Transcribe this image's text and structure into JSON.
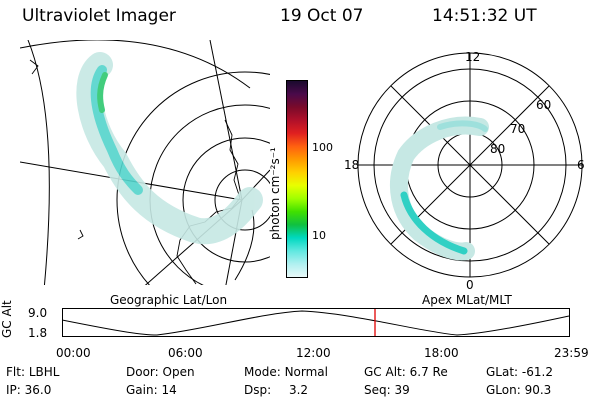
{
  "header": {
    "title": "Ultraviolet Imager",
    "date": "19 Oct 07",
    "time": "14:51:32 UT"
  },
  "colorbar": {
    "label": "photon cm⁻²s⁻¹",
    "ticks": [
      "100",
      "10"
    ],
    "colors": [
      "#1a0a2e",
      "#4a0a4a",
      "#7a0a2a",
      "#b0102a",
      "#e02020",
      "#ff6010",
      "#ff9a00",
      "#ffd000",
      "#e8ff00",
      "#a0ff00",
      "#40e000",
      "#10c040",
      "#00d8c0",
      "#60e8e0",
      "#b0f0f0",
      "#e8f8f8"
    ]
  },
  "polar": {
    "labels": [
      "12",
      "60",
      "70",
      "80",
      "18",
      "6",
      "0"
    ]
  },
  "panel_labels": {
    "left": "Geographic Lat/Lon",
    "right": "Apex MLat/MLT"
  },
  "timeline": {
    "y_label": "GC Alt",
    "y_ticks": [
      "9.0",
      "1.8"
    ],
    "x_ticks": [
      "00:00",
      "06:00",
      "12:00",
      "18:00",
      "23:59"
    ],
    "marker_color": "#e00000"
  },
  "status": {
    "row1": [
      {
        "label": "Flt:",
        "value": "LBHL"
      },
      {
        "label": "Door:",
        "value": "Open"
      },
      {
        "label": "Mode:",
        "value": "Normal"
      },
      {
        "label": "GC Alt:",
        "value": "6.7 Re"
      },
      {
        "label": "GLat:",
        "value": "-61.2"
      }
    ],
    "row2": [
      {
        "label": "IP:",
        "value": "36.0"
      },
      {
        "label": "Gain:",
        "value": "14"
      },
      {
        "label": "Dsp:",
        "value": "3.2"
      },
      {
        "label": "Seq:",
        "value": "39"
      },
      {
        "label": "GLon:",
        "value": "90.3"
      }
    ]
  }
}
